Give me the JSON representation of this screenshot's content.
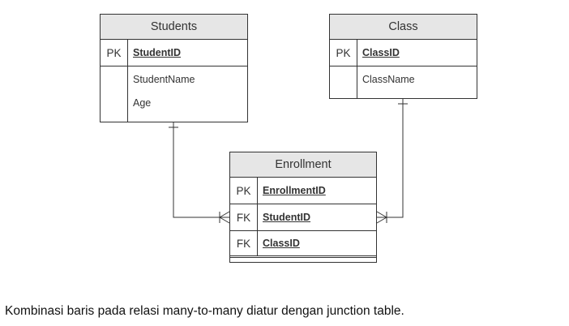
{
  "entities": {
    "students": {
      "title": "Students",
      "pk_label": "PK",
      "pk_field": "StudentID",
      "attributes": [
        "StudentName",
        "Age"
      ]
    },
    "class": {
      "title": "Class",
      "pk_label": "PK",
      "pk_field": "ClassID",
      "attributes": [
        "ClassName"
      ]
    },
    "enrollment": {
      "title": "Enrollment",
      "rows": [
        {
          "key": "PK",
          "field": "EnrollmentID"
        },
        {
          "key": "FK",
          "field": "StudentID"
        },
        {
          "key": "FK",
          "field": "ClassID"
        }
      ]
    }
  },
  "relationships": [
    {
      "from": "Students",
      "to": "Enrollment",
      "from_cardinality": "one",
      "to_cardinality": "many"
    },
    {
      "from": "Class",
      "to": "Enrollment",
      "from_cardinality": "one",
      "to_cardinality": "many"
    }
  ],
  "caption": "Kombinasi baris pada relasi many-to-many diatur dengan junction table."
}
